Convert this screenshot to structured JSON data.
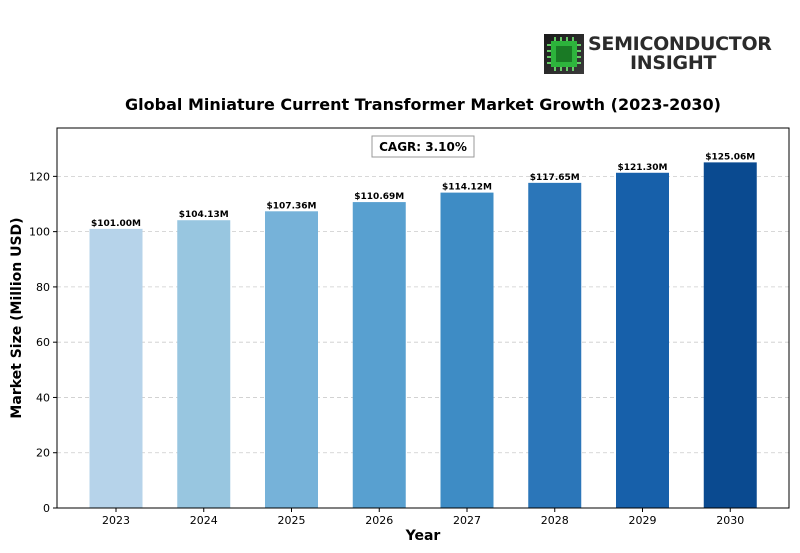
{
  "logo": {
    "line1": "SEMICONDUCTOR",
    "line2": "INSIGHT",
    "mark_color": "#2ecc40"
  },
  "chart_data": {
    "type": "bar",
    "title": "Global Miniature Current Transformer Market Growth (2023-2030)",
    "xlabel": "Year",
    "ylabel": "Market Size (Million USD)",
    "categories": [
      "2023",
      "2024",
      "2025",
      "2026",
      "2027",
      "2028",
      "2029",
      "2030"
    ],
    "values": [
      101.0,
      104.13,
      107.36,
      110.69,
      114.12,
      117.65,
      121.3,
      125.06
    ],
    "data_labels": [
      "$101.00M",
      "$104.13M",
      "$107.36M",
      "$110.69M",
      "$114.12M",
      "$117.65M",
      "$121.30M",
      "$125.06M"
    ],
    "ylim": [
      0,
      137.5
    ],
    "yticks": [
      0,
      20,
      40,
      60,
      80,
      100,
      120
    ],
    "grid": "y-dashed",
    "annotation": "CAGR: 3.10%",
    "bar_colors": [
      "#b6d3ea",
      "#98c6e0",
      "#76b2d9",
      "#58a0d0",
      "#3e8cc5",
      "#2b76b9",
      "#1760aa",
      "#0a4a90"
    ]
  }
}
